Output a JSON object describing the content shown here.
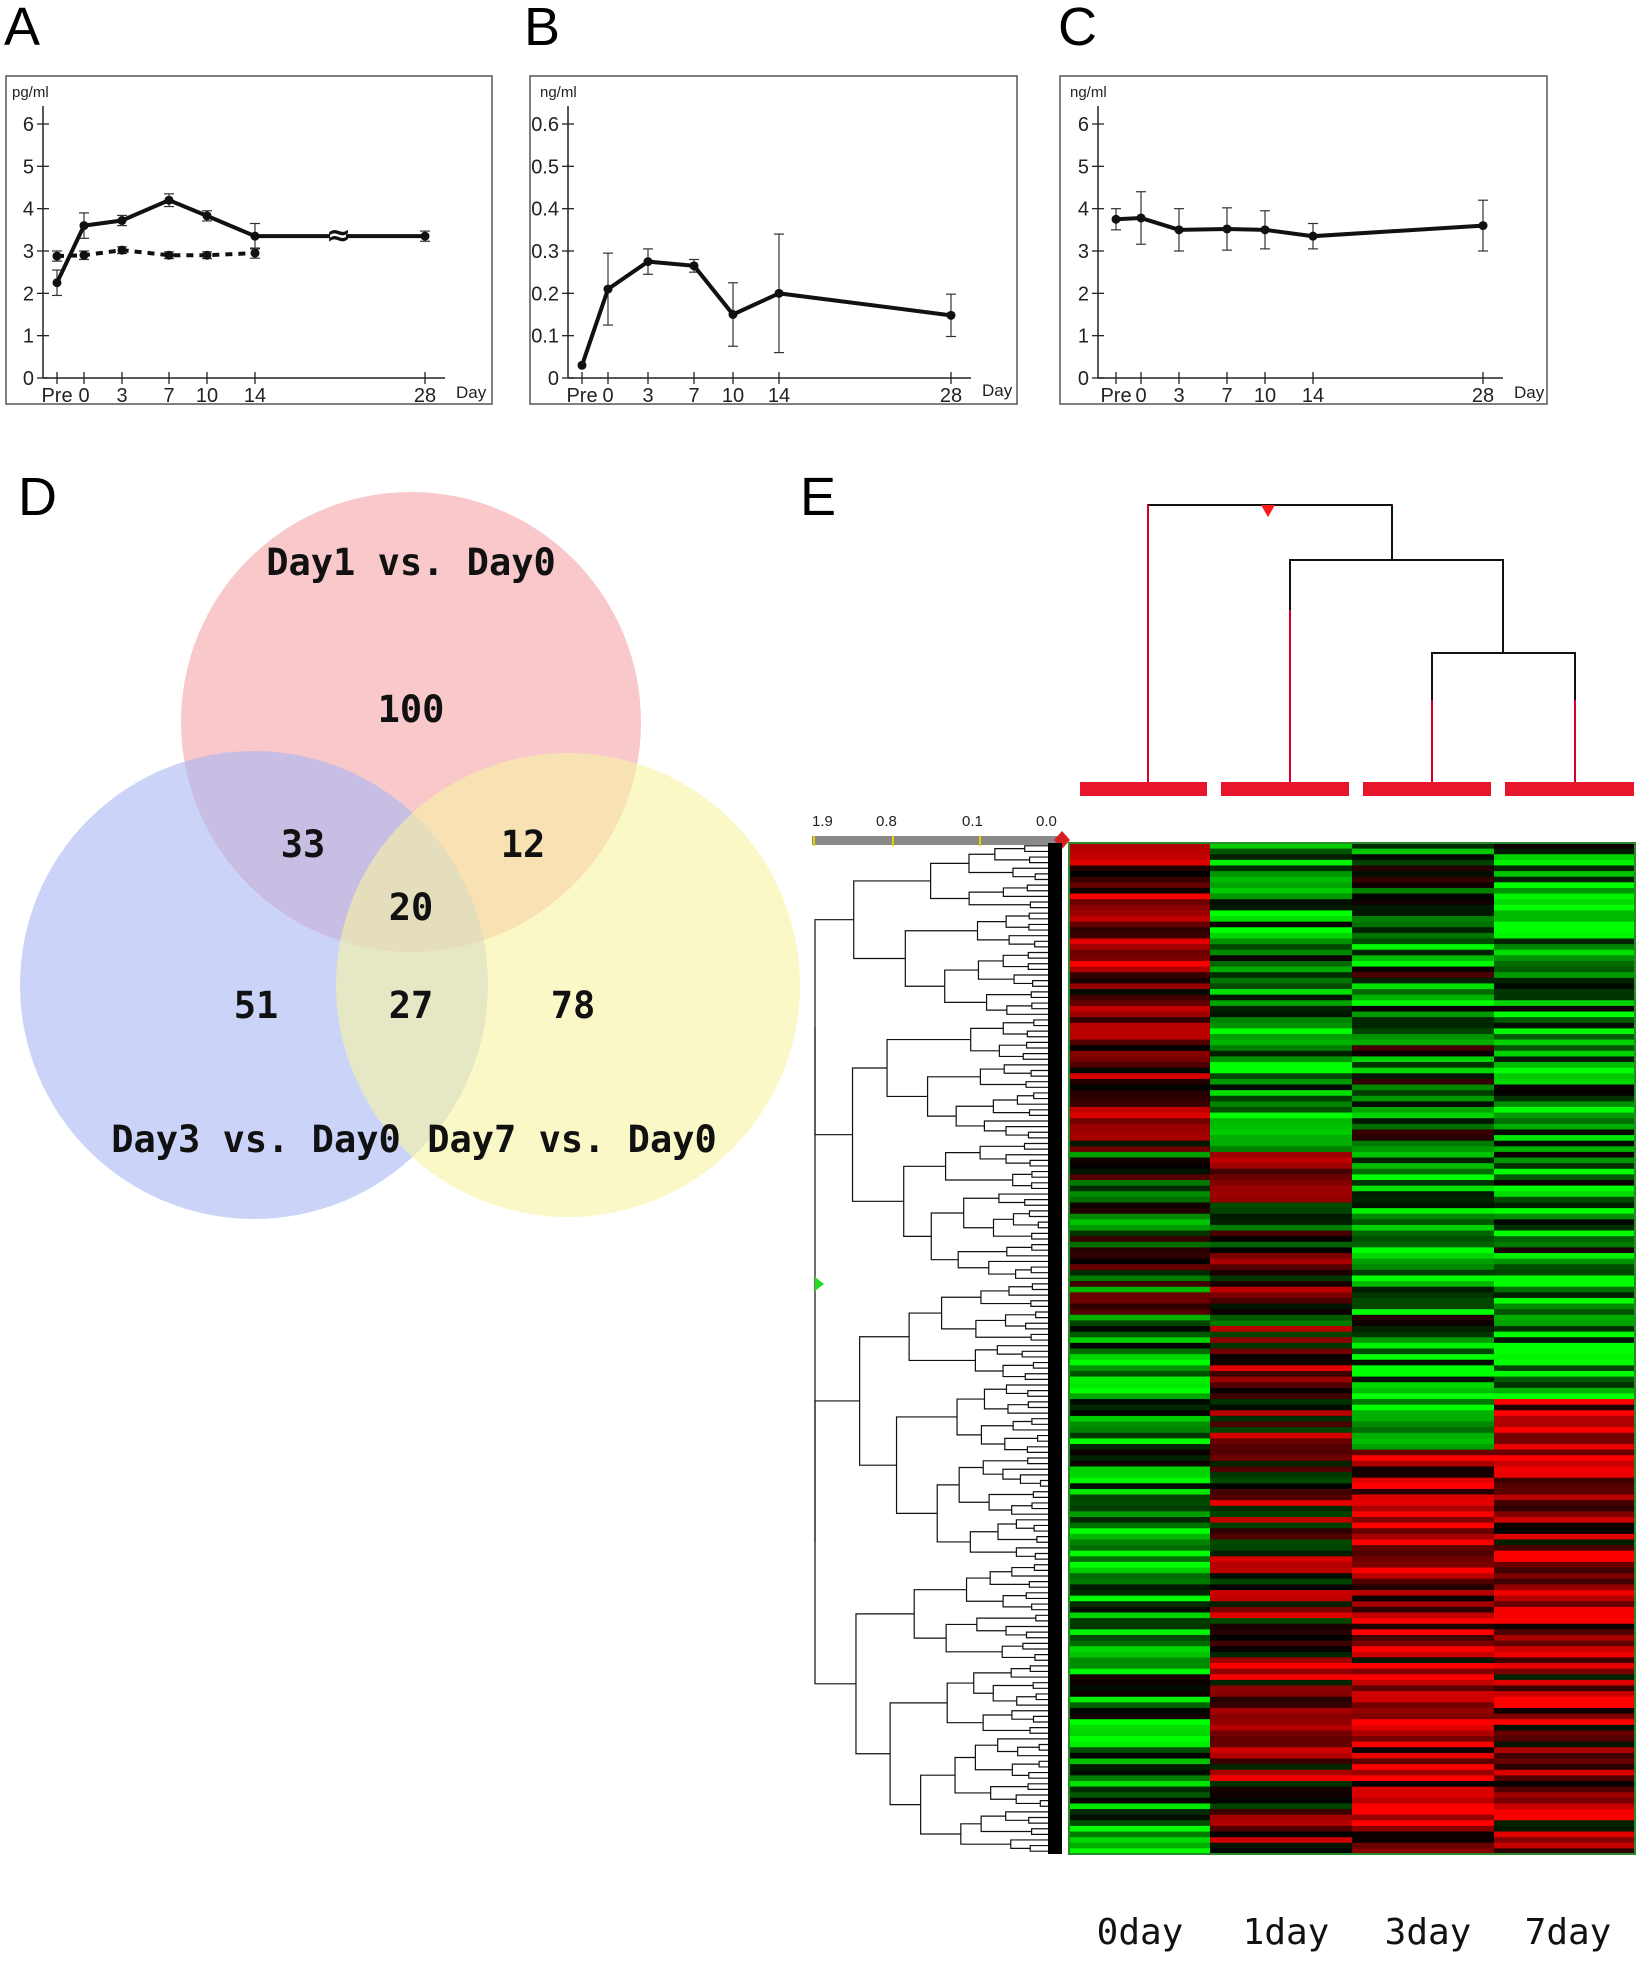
{
  "panels": {
    "A": "A",
    "B": "B",
    "C": "C",
    "D": "D",
    "E": "E"
  },
  "chart_data": [
    {
      "panel": "A",
      "type": "line",
      "ylabel": "pg/ml",
      "xlabel": "Day",
      "ylim": [
        0,
        6
      ],
      "yticks": [
        "0",
        "1",
        "2",
        "3",
        "4",
        "5",
        "6"
      ],
      "xtick_labels": [
        "Pre",
        "0",
        "3",
        "7",
        "10",
        "14",
        "28"
      ],
      "axis_break": "≈",
      "series": [
        {
          "name": "solid",
          "style": "solid",
          "points": [
            {
              "x": "Pre",
              "y": 2.25,
              "err": 0.3
            },
            {
              "x": "0",
              "y": 3.6,
              "err": 0.3
            },
            {
              "x": "3",
              "y": 3.72,
              "err": 0.12
            },
            {
              "x": "7",
              "y": 4.2,
              "err": 0.15
            },
            {
              "x": "10",
              "y": 3.83,
              "err": 0.12
            },
            {
              "x": "14",
              "y": 3.35,
              "err": 0.3
            },
            {
              "x": "28",
              "y": 3.35,
              "err": 0.12
            }
          ]
        },
        {
          "name": "dashed",
          "style": "dashed",
          "points": [
            {
              "x": "Pre",
              "y": 2.88,
              "err": 0.12
            },
            {
              "x": "0",
              "y": 2.9,
              "err": 0.1
            },
            {
              "x": "3",
              "y": 3.02,
              "err": 0.08
            },
            {
              "x": "7",
              "y": 2.9,
              "err": 0.08
            },
            {
              "x": "10",
              "y": 2.9,
              "err": 0.08
            },
            {
              "x": "14",
              "y": 2.95,
              "err": 0.12
            }
          ]
        }
      ]
    },
    {
      "panel": "B",
      "type": "line",
      "ylabel": "ng/ml",
      "xlabel": "Day",
      "ylim": [
        0,
        0.6
      ],
      "yticks": [
        "0",
        "0.1",
        "0.2",
        "0.3",
        "0.4",
        "0.5",
        "0.6"
      ],
      "xtick_labels": [
        "Pre",
        "0",
        "3",
        "7",
        "10",
        "14",
        "28"
      ],
      "series": [
        {
          "name": "solid",
          "style": "solid",
          "points": [
            {
              "x": "Pre",
              "y": 0.03,
              "err": 0
            },
            {
              "x": "0",
              "y": 0.21,
              "err": 0.085
            },
            {
              "x": "3",
              "y": 0.275,
              "err": 0.03
            },
            {
              "x": "7",
              "y": 0.265,
              "err": 0.015
            },
            {
              "x": "10",
              "y": 0.15,
              "err": 0.075
            },
            {
              "x": "14",
              "y": 0.2,
              "err": 0.14
            },
            {
              "x": "28",
              "y": 0.148,
              "err": 0.05
            }
          ]
        }
      ]
    },
    {
      "panel": "C",
      "type": "line",
      "ylabel": "ng/ml",
      "xlabel": "Day",
      "ylim": [
        0,
        6
      ],
      "yticks": [
        "0",
        "1",
        "2",
        "3",
        "4",
        "5",
        "6"
      ],
      "xtick_labels": [
        "Pre",
        "0",
        "3",
        "7",
        "10",
        "14",
        "28"
      ],
      "series": [
        {
          "name": "solid",
          "style": "solid",
          "points": [
            {
              "x": "Pre",
              "y": 3.75,
              "err": 0.25
            },
            {
              "x": "0",
              "y": 3.78,
              "err": 0.62
            },
            {
              "x": "3",
              "y": 3.5,
              "err": 0.5
            },
            {
              "x": "7",
              "y": 3.52,
              "err": 0.5
            },
            {
              "x": "10",
              "y": 3.5,
              "err": 0.45
            },
            {
              "x": "14",
              "y": 3.35,
              "err": 0.3
            },
            {
              "x": "28",
              "y": 3.6,
              "err": 0.6
            }
          ]
        }
      ]
    },
    {
      "panel": "D",
      "type": "venn",
      "sets": [
        {
          "name": "Day1  vs. Day0",
          "color": "#f4a3a8"
        },
        {
          "name": "Day3  vs. Day0",
          "color": "#a8b8f4"
        },
        {
          "name": "Day7  vs. Day0",
          "color": "#f8f3a3"
        }
      ],
      "regions": {
        "day1_only": 100,
        "day3_only": 51,
        "day7_only": 78,
        "day1_day3": 33,
        "day1_day7": 12,
        "day3_day7": 27,
        "all_three": 20
      }
    },
    {
      "panel": "E",
      "type": "heatmap",
      "columns": [
        "0day",
        "1day",
        "3day",
        "7day"
      ],
      "scale_labels": [
        "1.9",
        "0.8",
        "0.1",
        "0.0"
      ],
      "colors": {
        "high": "#ff0000",
        "low": "#00ff00",
        "mid": "#000000",
        "sample_bar": "#e8162d"
      },
      "rows": 180
    }
  ]
}
